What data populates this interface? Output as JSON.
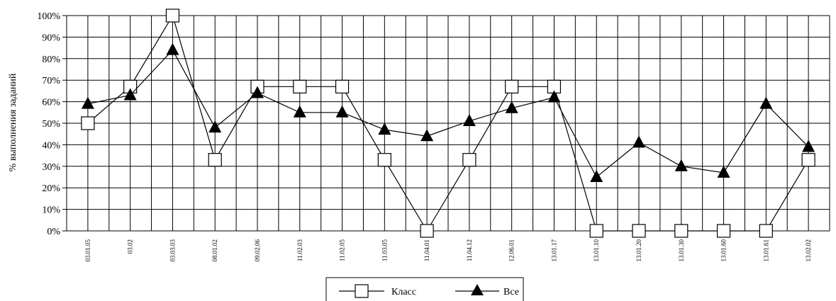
{
  "chart_data": {
    "type": "line",
    "ylabel": "% выполнения заданий",
    "ylim": [
      0,
      100
    ],
    "yticks": [
      "0%",
      "10%",
      "20%",
      "30%",
      "40%",
      "50%",
      "60%",
      "70%",
      "80%",
      "90%",
      "100%"
    ],
    "grid": true,
    "legend_position": "bottom-center",
    "categories": [
      "03.01.05",
      "03.02",
      "03.03.03",
      "08.01.02",
      "09.02.06",
      "11.02.03",
      "11.02.05",
      "11.03.05",
      "11.04.01",
      "11.04.12",
      "12.06.01",
      "13.01.17",
      "13.01.10",
      "13.01.20",
      "13.01.30",
      "13.01.60",
      "13.01.61",
      "13.02.02"
    ],
    "series": [
      {
        "name": "Класс",
        "marker": "square-open",
        "values": [
          50,
          67,
          100,
          33,
          67,
          67,
          67,
          33,
          0,
          33,
          67,
          67,
          0,
          0,
          0,
          0,
          0,
          33
        ]
      },
      {
        "name": "Все",
        "marker": "triangle-filled",
        "values": [
          59,
          63,
          84,
          48,
          64,
          55,
          55,
          47,
          44,
          51,
          57,
          62,
          25,
          41,
          30,
          27,
          59,
          39
        ]
      }
    ]
  }
}
